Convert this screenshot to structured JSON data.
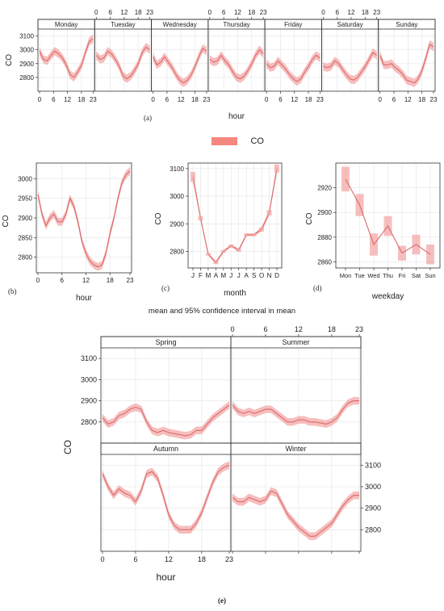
{
  "legend": {
    "label": "CO",
    "color": "#f4877f"
  },
  "captions": {
    "a": "(a)",
    "b": "(b)",
    "c": "(c)",
    "d": "(d)",
    "e": "(e)"
  },
  "mid_title": "mean and 95% confidence interval in mean",
  "colors": {
    "line": "#d96a6a",
    "band": "#f4a3a3"
  },
  "chart_data": [
    {
      "id": "a",
      "type": "line",
      "xlabel": "hour",
      "ylabel": "CO",
      "ylim": [
        2700,
        3150
      ],
      "yticks": [
        2800,
        2900,
        3000,
        3100
      ],
      "xticks": [
        0,
        6,
        12,
        18,
        23
      ],
      "band_halfwidth": 30,
      "panels": [
        {
          "name": "Monday",
          "values": [
            2990,
            2930,
            2920,
            2960,
            2990,
            2970,
            2940,
            2890,
            2820,
            2800,
            2840,
            2890,
            2980,
            3060,
            3080
          ]
        },
        {
          "name": "Tuesday",
          "values": [
            2960,
            2930,
            2940,
            2990,
            2970,
            2930,
            2880,
            2810,
            2790,
            2810,
            2850,
            2900,
            2980,
            3020,
            3000
          ]
        },
        {
          "name": "Wednesday",
          "values": [
            2950,
            2890,
            2910,
            2950,
            2910,
            2870,
            2820,
            2780,
            2760,
            2780,
            2820,
            2880,
            2950,
            3010,
            2990
          ]
        },
        {
          "name": "Thursday",
          "values": [
            2930,
            2910,
            2920,
            2960,
            2920,
            2890,
            2840,
            2800,
            2790,
            2810,
            2850,
            2900,
            2960,
            3000,
            2970
          ]
        },
        {
          "name": "Friday",
          "values": [
            2900,
            2870,
            2880,
            2920,
            2890,
            2860,
            2820,
            2790,
            2770,
            2790,
            2840,
            2880,
            2930,
            2960,
            2940
          ]
        },
        {
          "name": "Saturday",
          "values": [
            2880,
            2870,
            2880,
            2920,
            2900,
            2860,
            2820,
            2790,
            2780,
            2800,
            2840,
            2880,
            2930,
            2980,
            2960
          ]
        },
        {
          "name": "Sunday",
          "values": [
            2960,
            2890,
            2890,
            2900,
            2870,
            2850,
            2820,
            2780,
            2770,
            2760,
            2790,
            2850,
            2940,
            3040,
            3020
          ]
        }
      ]
    },
    {
      "id": "b",
      "type": "line",
      "xlabel": "hour",
      "ylabel": "CO",
      "ylim": [
        2760,
        3040
      ],
      "yticks": [
        2800,
        2850,
        2900,
        2950,
        3000
      ],
      "x": [
        0,
        1,
        2,
        3,
        4,
        5,
        6,
        7,
        8,
        9,
        10,
        11,
        12,
        13,
        14,
        15,
        16,
        17,
        18,
        19,
        20,
        21,
        22,
        23
      ],
      "values": [
        2960,
        2910,
        2880,
        2900,
        2910,
        2890,
        2890,
        2910,
        2950,
        2930,
        2890,
        2840,
        2810,
        2790,
        2780,
        2775,
        2780,
        2810,
        2860,
        2900,
        2950,
        2990,
        3010,
        3020
      ],
      "band_halfwidth": 10
    },
    {
      "id": "c",
      "type": "line",
      "xlabel": "month",
      "ylabel": "CO",
      "ylim": [
        2740,
        3120
      ],
      "yticks": [
        2800,
        2900,
        3000,
        3100
      ],
      "categories": [
        "J",
        "F",
        "M",
        "A",
        "M",
        "J",
        "J",
        "A",
        "S",
        "O",
        "N",
        "D"
      ],
      "values": [
        3070,
        2920,
        2790,
        2760,
        2800,
        2820,
        2805,
        2860,
        2860,
        2880,
        2940,
        3100
      ],
      "band_halfwidth": [
        18,
        8,
        5,
        6,
        5,
        5,
        6,
        5,
        5,
        8,
        10,
        15
      ]
    },
    {
      "id": "d",
      "type": "line",
      "xlabel": "weekday",
      "ylabel": "CO",
      "ylim": [
        2855,
        2940
      ],
      "yticks": [
        2860,
        2880,
        2900,
        2920
      ],
      "categories": [
        "Mon",
        "Tue",
        "Wed",
        "Thu",
        "Fri",
        "Sat",
        "Sun"
      ],
      "values": [
        2927,
        2906,
        2874,
        2889,
        2867,
        2874,
        2866
      ],
      "band_halfwidth": [
        10,
        9,
        9,
        8,
        6,
        8,
        8
      ]
    },
    {
      "id": "e",
      "type": "line",
      "xlabel": "hour",
      "ylabel": "CO",
      "ylim": [
        2700,
        3150
      ],
      "yticks": [
        2800,
        2900,
        3000,
        3100
      ],
      "xticks": [
        0,
        6,
        12,
        18,
        23
      ],
      "band_halfwidth": 18,
      "panels": [
        {
          "name": "Spring",
          "values": [
            2820,
            2790,
            2800,
            2830,
            2840,
            2860,
            2870,
            2860,
            2800,
            2760,
            2750,
            2760,
            2750,
            2745,
            2740,
            2735,
            2740,
            2760,
            2760,
            2790,
            2820,
            2840,
            2860,
            2880
          ]
        },
        {
          "name": "Summer",
          "values": [
            2880,
            2850,
            2840,
            2850,
            2840,
            2850,
            2860,
            2860,
            2840,
            2820,
            2800,
            2800,
            2810,
            2810,
            2800,
            2800,
            2795,
            2790,
            2800,
            2820,
            2860,
            2890,
            2900,
            2900
          ]
        },
        {
          "name": "Autumn",
          "values": [
            3060,
            3000,
            2960,
            2990,
            2970,
            2960,
            2930,
            2980,
            3060,
            3070,
            3040,
            2960,
            2870,
            2820,
            2800,
            2800,
            2800,
            2830,
            2880,
            2950,
            3020,
            3070,
            3090,
            3100
          ]
        },
        {
          "name": "Winter",
          "values": [
            2950,
            2930,
            2930,
            2950,
            2940,
            2930,
            2940,
            2980,
            2970,
            2920,
            2870,
            2840,
            2810,
            2790,
            2770,
            2770,
            2790,
            2810,
            2830,
            2870,
            2910,
            2940,
            2960,
            2960
          ]
        }
      ]
    }
  ]
}
